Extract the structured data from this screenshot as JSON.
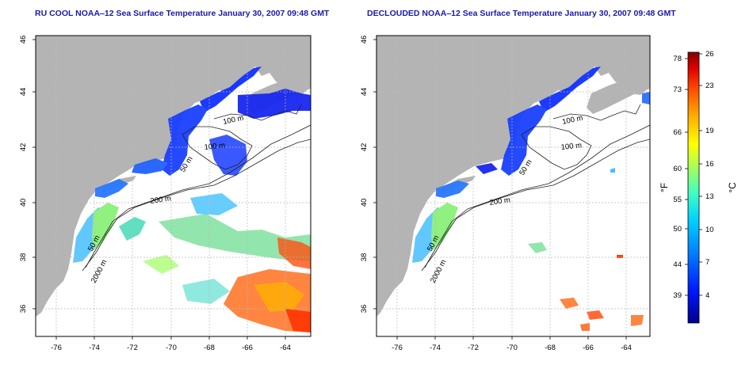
{
  "left_panel": {
    "title": "RU COOL NOAA‒12 Sea Surface Temperature January 30, 2007 09:48 GMT"
  },
  "right_panel": {
    "title": "DECLOUDED NOAA‒12 Sea Surface Temperature January 30, 2007 09:48 GMT"
  },
  "axes": {
    "lat_ticks": [
      "46",
      "44",
      "42",
      "40",
      "38",
      "36"
    ],
    "lon_ticks": [
      "-76",
      "-74",
      "-72",
      "-70",
      "-68",
      "-66",
      "-64"
    ]
  },
  "isobaths": {
    "label_100": "100 m",
    "label_50": "50 m",
    "label_200": "200 m",
    "label_2000": "2000 m"
  },
  "colorbar": {
    "fahrenheit_label": "°F",
    "celsius_label": "°C",
    "fahrenheit_ticks": [
      "78",
      "73",
      "66",
      "60",
      "55",
      "50",
      "44",
      "39"
    ],
    "celsius_ticks": [
      "26",
      "23",
      "19",
      "16",
      "13",
      "10",
      "7",
      "4"
    ],
    "colors": [
      "#00008c",
      "#0018ff",
      "#0080ff",
      "#00d0ff",
      "#40ffc0",
      "#a0ff60",
      "#ffff00",
      "#ffb000",
      "#ff5000",
      "#e00000",
      "#800000"
    ]
  },
  "colors": {
    "land": "#b4b4b4",
    "ocean": "#ffffff",
    "grid": "#b8b8b8"
  }
}
